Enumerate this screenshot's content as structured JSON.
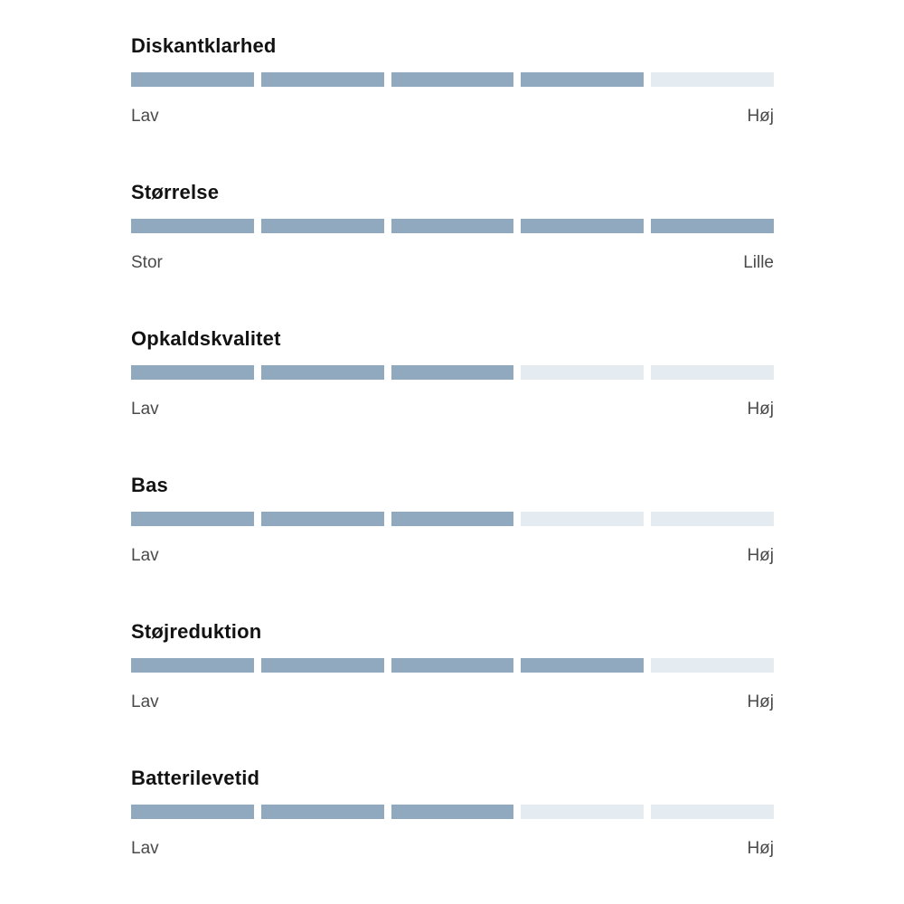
{
  "colors": {
    "background": "#ffffff",
    "filled_segment": "#91a9bf",
    "empty_segment": "#e4ebf1",
    "title_text": "#121212",
    "scale_label_text": "#4a4a4a"
  },
  "chart_data": {
    "type": "bar",
    "subtype": "segmented-rating-bars",
    "max_segments": 5,
    "legend_position": "none",
    "grid": false,
    "ratings": [
      {
        "label": "Diskantklarhed",
        "value": 4,
        "min_label": "Lav",
        "max_label": "Høj"
      },
      {
        "label": "Størrelse",
        "value": 5,
        "min_label": "Stor",
        "max_label": "Lille"
      },
      {
        "label": "Opkaldskvalitet",
        "value": 3,
        "min_label": "Lav",
        "max_label": "Høj"
      },
      {
        "label": "Bas",
        "value": 3,
        "min_label": "Lav",
        "max_label": "Høj"
      },
      {
        "label": "Støjreduktion",
        "value": 4,
        "min_label": "Lav",
        "max_label": "Høj"
      },
      {
        "label": "Batterilevetid",
        "value": 3,
        "min_label": "Lav",
        "max_label": "Høj"
      }
    ]
  }
}
